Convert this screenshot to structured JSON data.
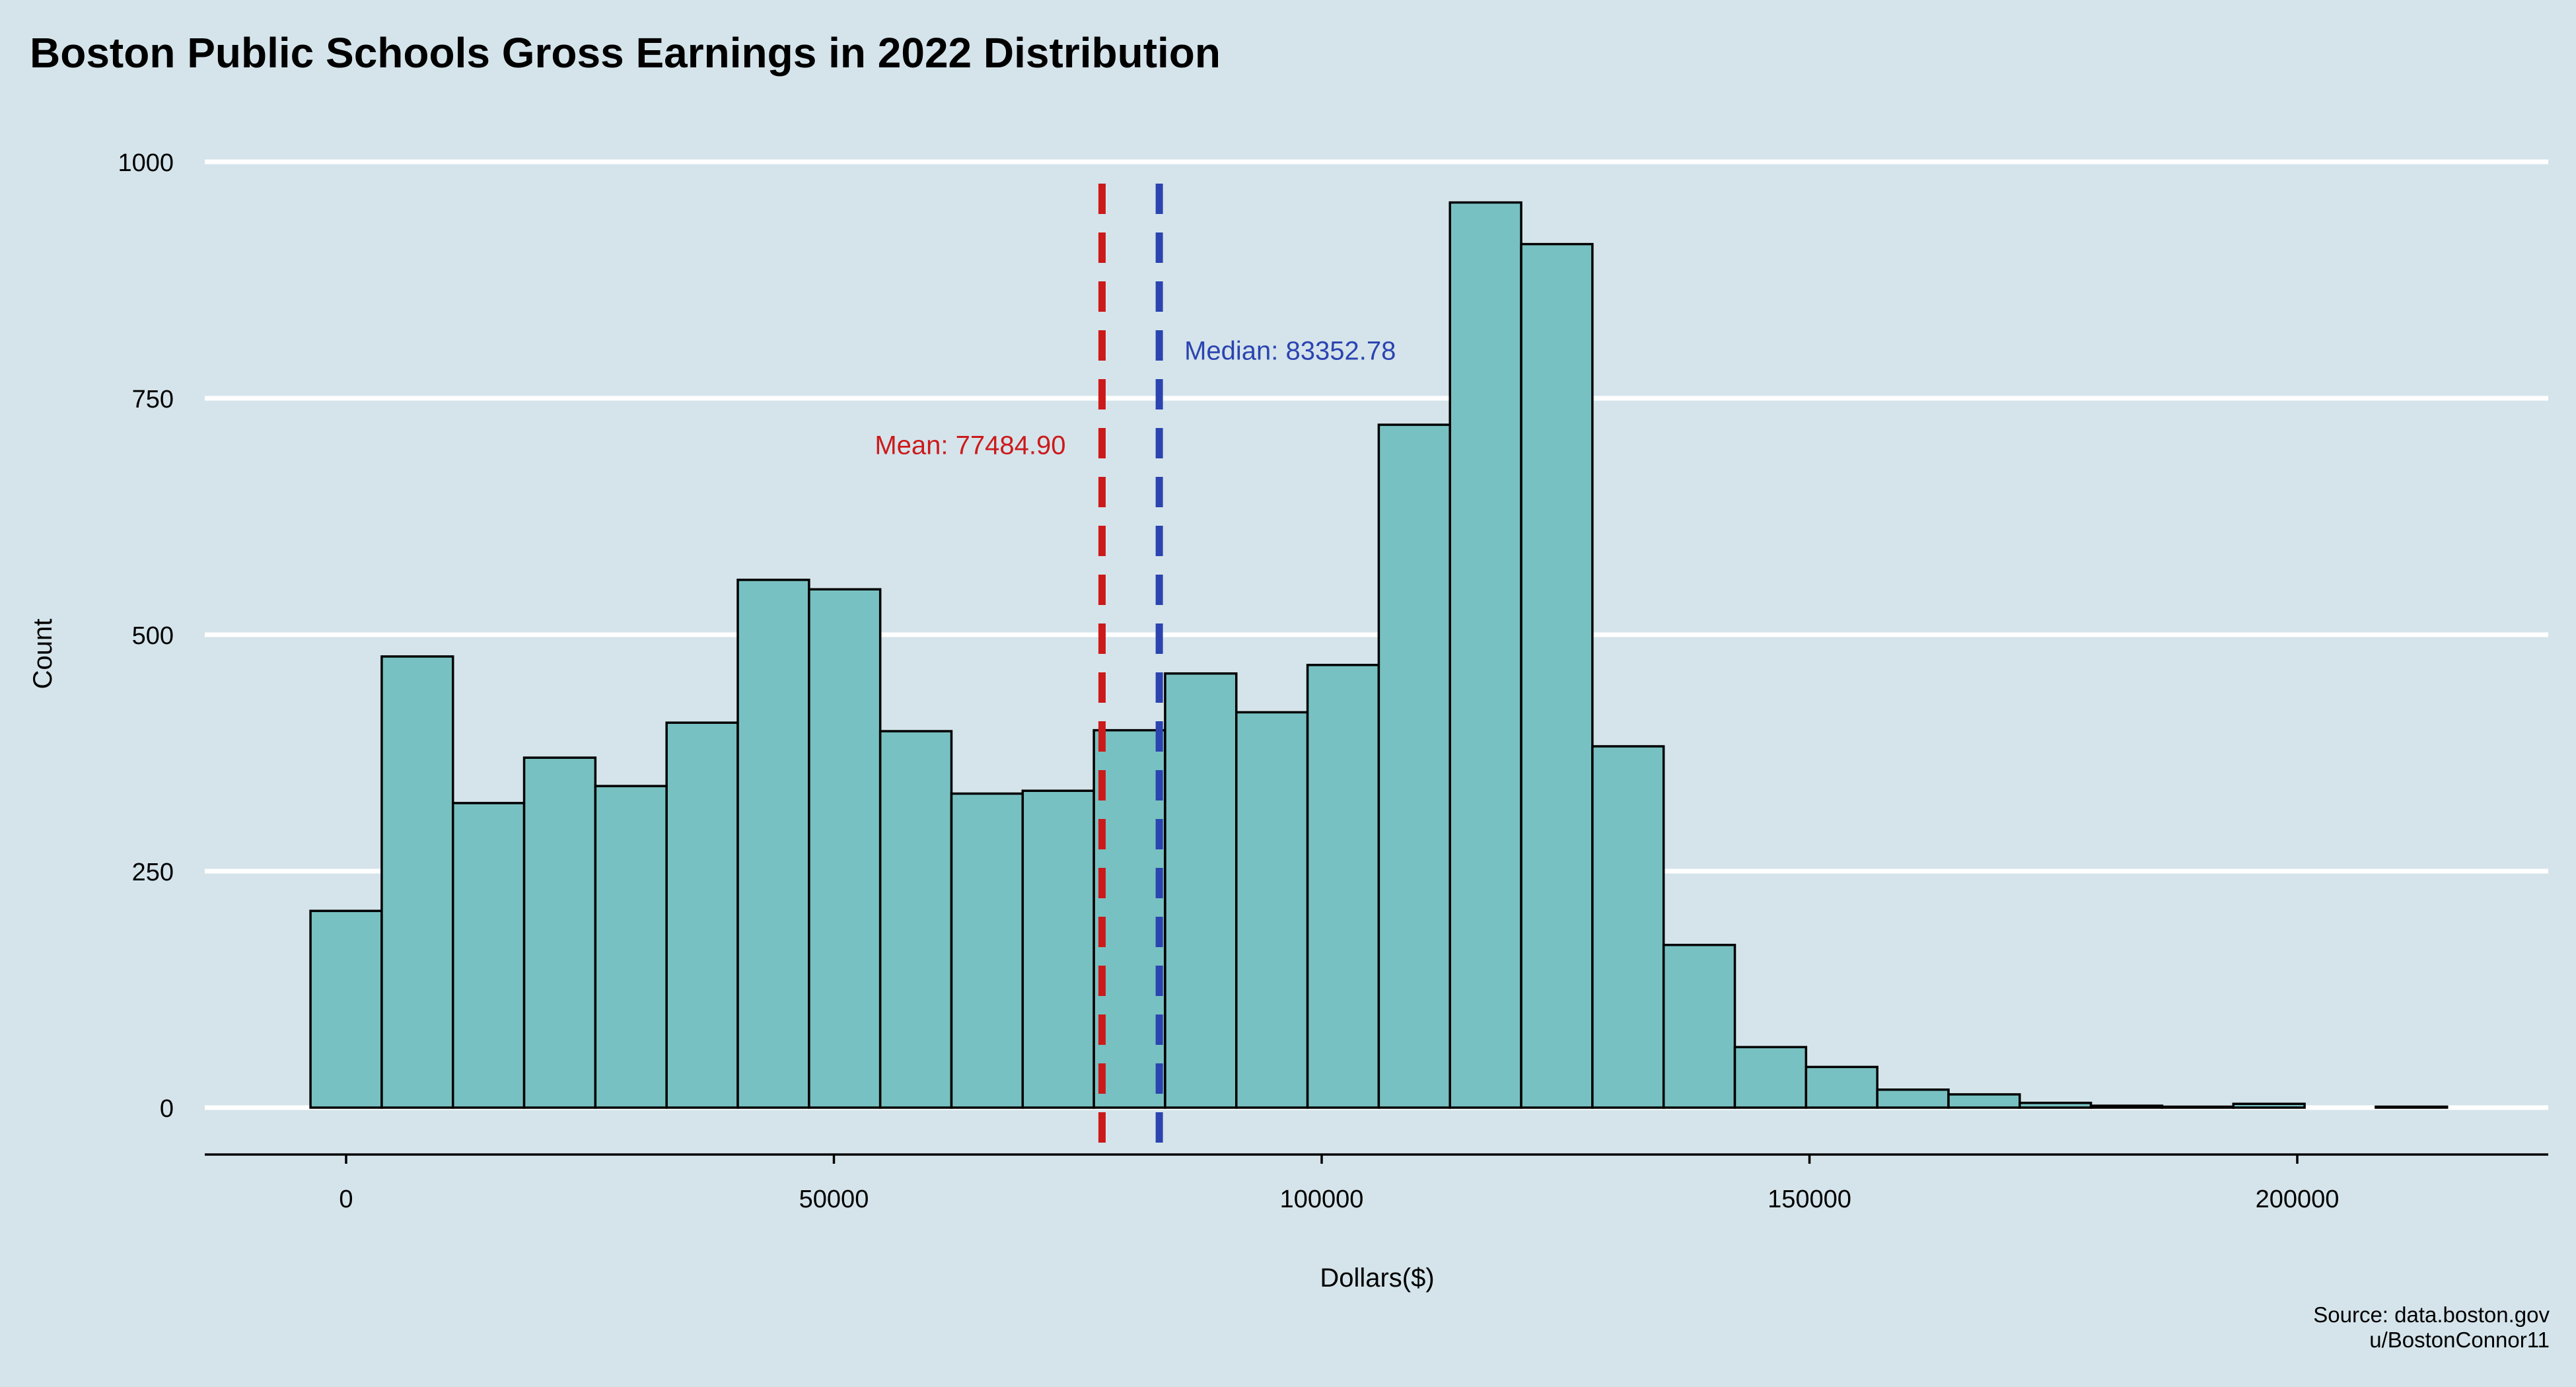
{
  "chart_data": {
    "type": "bar",
    "title": "Boston Public Schools Gross Earnings in 2022 Distribution",
    "xlabel": "Dollars($)",
    "ylabel": "Count",
    "xlim": [
      -15000,
      225000
    ],
    "ylim": [
      -50,
      1000
    ],
    "x_ticks": [
      0,
      50000,
      100000,
      150000,
      200000
    ],
    "y_ticks": [
      0,
      250,
      500,
      750,
      1000
    ],
    "grid": "horizontal major only",
    "legend": "none",
    "bin_width": 7300,
    "bins": [
      {
        "x0": -3650,
        "x1": 3650,
        "count": 208
      },
      {
        "x0": 3650,
        "x1": 10950,
        "count": 477
      },
      {
        "x0": 10950,
        "x1": 18250,
        "count": 322
      },
      {
        "x0": 18250,
        "x1": 25550,
        "count": 370
      },
      {
        "x0": 25550,
        "x1": 32850,
        "count": 340
      },
      {
        "x0": 32850,
        "x1": 40150,
        "count": 407
      },
      {
        "x0": 40150,
        "x1": 47450,
        "count": 558
      },
      {
        "x0": 47450,
        "x1": 54750,
        "count": 548
      },
      {
        "x0": 54750,
        "x1": 62050,
        "count": 398
      },
      {
        "x0": 62050,
        "x1": 69350,
        "count": 332
      },
      {
        "x0": 69350,
        "x1": 76650,
        "count": 335
      },
      {
        "x0": 76650,
        "x1": 83950,
        "count": 399
      },
      {
        "x0": 83950,
        "x1": 91250,
        "count": 459
      },
      {
        "x0": 91250,
        "x1": 98550,
        "count": 418
      },
      {
        "x0": 98550,
        "x1": 105850,
        "count": 468
      },
      {
        "x0": 105850,
        "x1": 113150,
        "count": 722
      },
      {
        "x0": 113150,
        "x1": 120450,
        "count": 957
      },
      {
        "x0": 120450,
        "x1": 127750,
        "count": 913
      },
      {
        "x0": 127750,
        "x1": 135050,
        "count": 382
      },
      {
        "x0": 135050,
        "x1": 142350,
        "count": 172
      },
      {
        "x0": 142350,
        "x1": 149650,
        "count": 64
      },
      {
        "x0": 149650,
        "x1": 156950,
        "count": 43
      },
      {
        "x0": 156950,
        "x1": 164250,
        "count": 19
      },
      {
        "x0": 164250,
        "x1": 171550,
        "count": 14
      },
      {
        "x0": 171550,
        "x1": 178850,
        "count": 5
      },
      {
        "x0": 178850,
        "x1": 186150,
        "count": 2
      },
      {
        "x0": 186150,
        "x1": 193450,
        "count": 1
      },
      {
        "x0": 193450,
        "x1": 200750,
        "count": 4
      },
      {
        "x0": 200750,
        "x1": 208050,
        "count": 0
      },
      {
        "x0": 208050,
        "x1": 215350,
        "count": 1
      }
    ],
    "reference_lines": [
      {
        "label": "Mean: 77484.90",
        "value": 77484.9,
        "color": "#cc1a1a",
        "label_y": 700
      },
      {
        "label": "Median: 83352.78",
        "value": 83352.78,
        "color": "#2b44b0",
        "label_y": 800
      }
    ],
    "caption": [
      "Source: data.boston.gov",
      "u/BostonConnor11"
    ],
    "colors": {
      "background": "#d5e4eb",
      "bar_fill": "#78c1c2",
      "bar_stroke": "#000000",
      "grid": "#ffffff"
    }
  }
}
